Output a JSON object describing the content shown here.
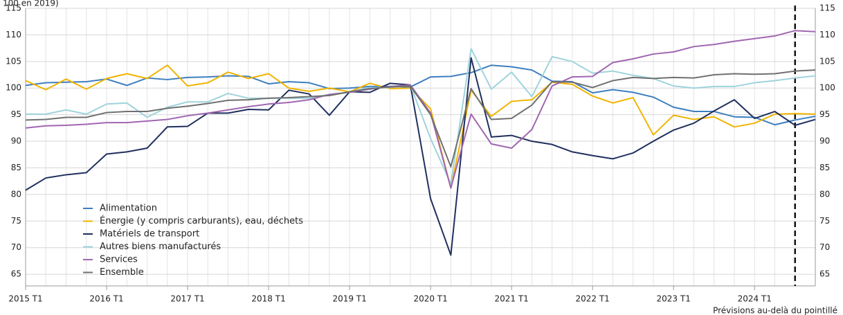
{
  "chart_data": {
    "type": "line",
    "title": "100 en 2019)",
    "note": "Prévisions au-delà du pointillé",
    "categories": [
      "2015 T1",
      null,
      null,
      null,
      "2016 T1",
      null,
      null,
      null,
      "2017 T1",
      null,
      null,
      null,
      "2018 T1",
      null,
      null,
      null,
      "2019 T1",
      null,
      null,
      null,
      "2020 T1",
      null,
      null,
      null,
      "2021 T1",
      null,
      null,
      null,
      "2022 T1",
      null,
      null,
      null,
      "2023 T1",
      null,
      null,
      null,
      "2024 T1",
      null,
      null,
      null
    ],
    "forecast_from_index": 38,
    "ylim": [
      62.8,
      115
    ],
    "yticks": [
      65,
      70,
      75,
      80,
      85,
      90,
      95,
      100,
      105,
      110,
      115
    ],
    "grid": true,
    "legend": "lower-left",
    "series": [
      {
        "name": "Alimentation",
        "color": "#3d7ebf",
        "values": [
          100.5,
          101,
          101.1,
          101.2,
          101.7,
          100.5,
          101.9,
          101.6,
          102,
          102.1,
          102.3,
          102.2,
          100.8,
          101.2,
          101,
          99.9,
          100,
          100.3,
          100.3,
          100.2,
          102.1,
          102.2,
          102.9,
          104.3,
          104,
          103.4,
          101.3,
          101.2,
          99.1,
          99.7,
          99.2,
          98.3,
          96.4,
          95.6,
          95.6,
          94.6,
          94.5,
          93.1,
          94,
          94.7
        ]
      },
      {
        "name": "Énergie (y compris carburants), eau, déchets",
        "color": "#f0b400",
        "values": [
          101.4,
          99.7,
          101.7,
          99.8,
          101.8,
          102.7,
          101.8,
          104.3,
          100.4,
          101,
          103,
          101.8,
          102.7,
          100,
          99.4,
          100,
          99.3,
          100.9,
          99.9,
          100,
          96.1,
          81.2,
          99.6,
          94.7,
          97.5,
          97.8,
          101.1,
          100.7,
          98.5,
          97.2,
          98.2,
          91.2,
          94.9,
          94.1,
          94.6,
          92.7,
          93.4,
          95.1,
          95.2,
          95.1
        ]
      },
      {
        "name": "Matériels de transport",
        "color": "#1f2f5e",
        "values": [
          80.8,
          83.1,
          83.7,
          84.1,
          87.6,
          88,
          88.7,
          92.7,
          92.8,
          95.3,
          95.3,
          96,
          95.9,
          99.6,
          98.9,
          94.9,
          99.3,
          99.2,
          100.9,
          100.6,
          79.2,
          68.6,
          105.7,
          90.8,
          91.1,
          90,
          89.4,
          88,
          87.3,
          86.7,
          87.8,
          90,
          92.1,
          93.4,
          95.7,
          97.8,
          94.3,
          95.6,
          93,
          94.1
        ]
      },
      {
        "name": "Autres biens manufacturés",
        "color": "#9fd3dc",
        "values": [
          95.1,
          95.1,
          95.9,
          95.1,
          97,
          97.2,
          94.5,
          96.4,
          97.4,
          97.4,
          99,
          98.1,
          98.1,
          98.1,
          98.1,
          98.8,
          99.3,
          100.1,
          100.1,
          100.6,
          90.5,
          82,
          107.4,
          99.8,
          103,
          98.4,
          105.9,
          105,
          102.8,
          103.2,
          102.4,
          101.8,
          100.4,
          100,
          100.3,
          100.3,
          101,
          101.4,
          101.9,
          102.3
        ]
      },
      {
        "name": "Services",
        "color": "#a066b0",
        "values": [
          92.5,
          92.9,
          93,
          93.2,
          93.5,
          93.5,
          93.8,
          94.1,
          94.8,
          95.3,
          95.9,
          96.5,
          97,
          97.3,
          97.8,
          98.8,
          99.2,
          99.8,
          100.3,
          100.6,
          95.3,
          81.2,
          95.1,
          89.5,
          88.7,
          92.2,
          100.4,
          102.1,
          102.2,
          104.8,
          105.5,
          106.4,
          106.8,
          107.8,
          108.2,
          108.8,
          109.3,
          109.8,
          110.8,
          110.6
        ]
      },
      {
        "name": "Ensemble",
        "color": "#707070",
        "values": [
          94,
          94.1,
          94.5,
          94.5,
          95.4,
          95.6,
          95.6,
          96.2,
          96.6,
          97.1,
          97.7,
          97.8,
          98.1,
          98.2,
          98.4,
          98.6,
          99.3,
          99.9,
          100.2,
          100.4,
          95,
          85.2,
          99.9,
          94.1,
          94.3,
          96.8,
          101.2,
          101.1,
          100.1,
          101.4,
          102,
          101.8,
          102,
          101.9,
          102.5,
          102.7,
          102.6,
          102.7,
          103.2,
          103.4
        ]
      }
    ]
  }
}
